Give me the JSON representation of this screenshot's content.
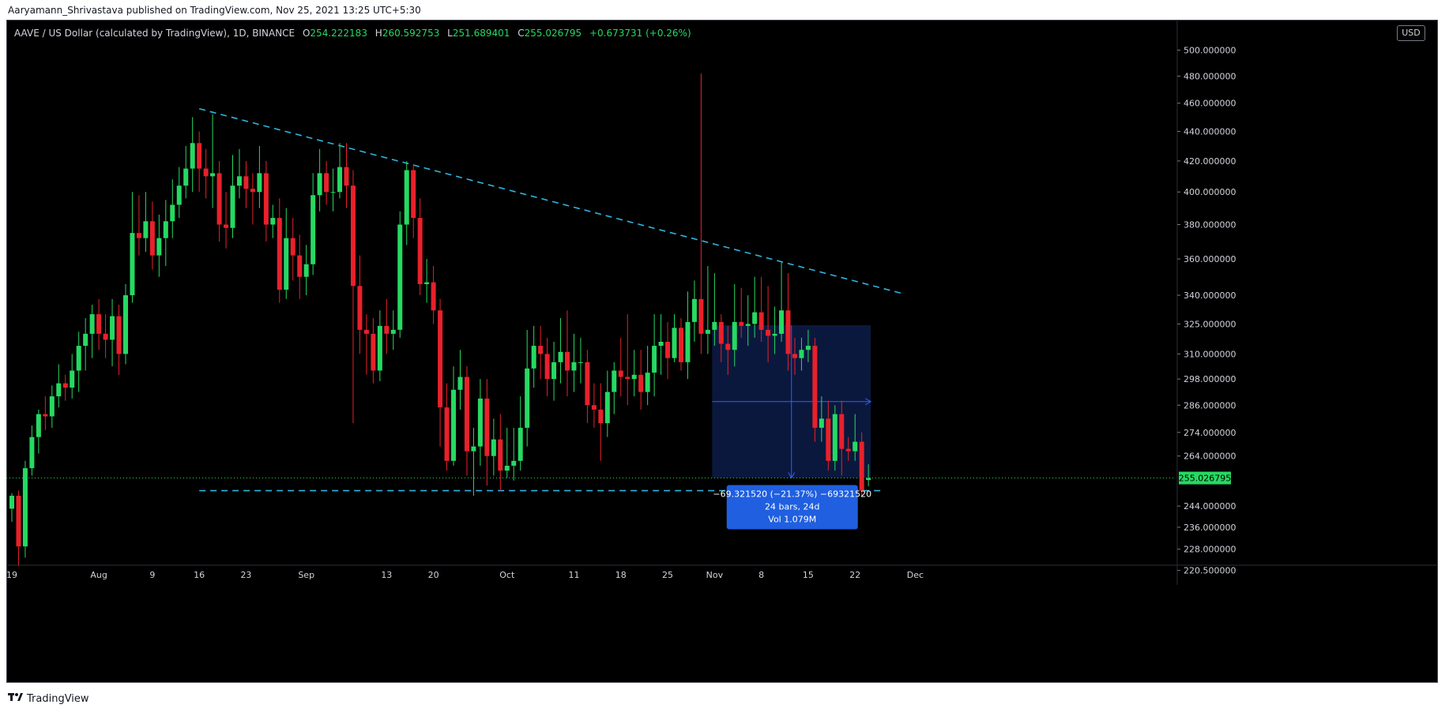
{
  "header": {
    "published": "Aaryamann_Shrivastava published on TradingView.com, Nov 25, 2021 13:25 UTC+5:30"
  },
  "legend": {
    "symbol": "AAVE / US Dollar (calculated by TradingView), 1D, BINANCE",
    "open_label": "O",
    "open": "254.222183",
    "high_label": "H",
    "high": "260.592753",
    "low_label": "L",
    "low": "251.689401",
    "close_label": "C",
    "close": "255.026795",
    "change": "+0.673731 (+0.26%)"
  },
  "currency_button": "USD",
  "footer": {
    "logo_icon": "tradingview-logo-icon",
    "brand": "TradingView"
  },
  "colors": {
    "up": "#26d962",
    "down": "#e8212b",
    "trendline": "#2fb5e0",
    "measure_fill": "#0c1b44",
    "measure_line": "#2962ff",
    "measure_label": "#1f5fe0",
    "last_price": "#26d962",
    "background": "#000000"
  },
  "measure": {
    "line1": "−69.321520 (−21.37%) −69321520",
    "line2": "24 bars, 24d",
    "line3": "Vol 1.079M",
    "from_date": "2021-11-01",
    "to_date": "2021-11-24",
    "from_price": 324.35,
    "to_price": 255.03
  },
  "chart_data": {
    "type": "candlestick",
    "symbol": "AAVE/USD",
    "interval": "1D",
    "y_scale": "log",
    "ylim": [
      215,
      520
    ],
    "last_price": 255.026795,
    "last_price_label": "255.026795",
    "y_ticks": [
      "500.000000",
      "480.000000",
      "460.000000",
      "440.000000",
      "420.000000",
      "400.000000",
      "380.000000",
      "360.000000",
      "340.000000",
      "325.000000",
      "310.000000",
      "298.000000",
      "286.000000",
      "274.000000",
      "264.000000",
      "255.026795",
      "244.000000",
      "236.000000",
      "228.000000",
      "220.500000"
    ],
    "x_ticks": [
      {
        "label": "19",
        "date": "2021-07-19"
      },
      {
        "label": "Aug",
        "date": "2021-08-01"
      },
      {
        "label": "9",
        "date": "2021-08-09"
      },
      {
        "label": "16",
        "date": "2021-08-16"
      },
      {
        "label": "23",
        "date": "2021-08-23"
      },
      {
        "label": "Sep",
        "date": "2021-09-01"
      },
      {
        "label": "13",
        "date": "2021-09-13"
      },
      {
        "label": "20",
        "date": "2021-09-20"
      },
      {
        "label": "Oct",
        "date": "2021-10-01"
      },
      {
        "label": "11",
        "date": "2021-10-11"
      },
      {
        "label": "18",
        "date": "2021-10-18"
      },
      {
        "label": "25",
        "date": "2021-10-25"
      },
      {
        "label": "Nov",
        "date": "2021-11-01"
      },
      {
        "label": "8",
        "date": "2021-11-08"
      },
      {
        "label": "15",
        "date": "2021-11-15"
      },
      {
        "label": "22",
        "date": "2021-11-22"
      },
      {
        "label": "Dec",
        "date": "2021-12-01"
      }
    ],
    "trendlines": [
      {
        "name": "descending resistance",
        "from": {
          "date": "2021-08-16",
          "price": 456
        },
        "to": {
          "date": "2021-11-29",
          "price": 341
        }
      },
      {
        "name": "horizontal support",
        "from": {
          "date": "2021-08-16",
          "price": 250
        },
        "to": {
          "date": "2021-11-26",
          "price": 250
        }
      }
    ],
    "start_date": "2021-07-19",
    "candles": [
      [
        243,
        248,
        238,
        249
      ],
      [
        248,
        229,
        222,
        250
      ],
      [
        229,
        259,
        225,
        262
      ],
      [
        259,
        272,
        256,
        277
      ],
      [
        272,
        282,
        265,
        284
      ],
      [
        282,
        281,
        275,
        290
      ],
      [
        281,
        290,
        276,
        295
      ],
      [
        290,
        296,
        285,
        305
      ],
      [
        296,
        294,
        288,
        300
      ],
      [
        294,
        302,
        289,
        310
      ],
      [
        302,
        314,
        292,
        321
      ],
      [
        314,
        320,
        302,
        328
      ],
      [
        320,
        330,
        308,
        335
      ],
      [
        330,
        320,
        312,
        338
      ],
      [
        320,
        317,
        308,
        330
      ],
      [
        317,
        329,
        304,
        338
      ],
      [
        329,
        310,
        300,
        335
      ],
      [
        310,
        340,
        305,
        346
      ],
      [
        340,
        375,
        336,
        400
      ],
      [
        375,
        372,
        362,
        398
      ],
      [
        372,
        382,
        364,
        400
      ],
      [
        382,
        362,
        354,
        394
      ],
      [
        362,
        372,
        350,
        386
      ],
      [
        372,
        382,
        356,
        395
      ],
      [
        382,
        392,
        372,
        408
      ],
      [
        392,
        404,
        384,
        416
      ],
      [
        404,
        415,
        396,
        430
      ],
      [
        415,
        432,
        400,
        450
      ],
      [
        432,
        415,
        400,
        440
      ],
      [
        415,
        410,
        396,
        428
      ],
      [
        410,
        412,
        390,
        452
      ],
      [
        412,
        380,
        370,
        420
      ],
      [
        380,
        378,
        366,
        400
      ],
      [
        378,
        404,
        372,
        424
      ],
      [
        404,
        410,
        396,
        428
      ],
      [
        410,
        402,
        390,
        420
      ],
      [
        402,
        400,
        380,
        412
      ],
      [
        400,
        412,
        390,
        430
      ],
      [
        412,
        380,
        370,
        420
      ],
      [
        380,
        384,
        372,
        392
      ],
      [
        384,
        343,
        336,
        396
      ],
      [
        343,
        372,
        338,
        390
      ],
      [
        372,
        362,
        348,
        384
      ],
      [
        362,
        350,
        338,
        374
      ],
      [
        350,
        357,
        340,
        368
      ],
      [
        357,
        398,
        351,
        412
      ],
      [
        398,
        412,
        388,
        428
      ],
      [
        412,
        400,
        392,
        420
      ],
      [
        400,
        400,
        388,
        415
      ],
      [
        400,
        416,
        396,
        432
      ],
      [
        416,
        404,
        390,
        432
      ],
      [
        404,
        345,
        278,
        414
      ],
      [
        345,
        322,
        310,
        362
      ],
      [
        322,
        320,
        300,
        330
      ],
      [
        320,
        302,
        296,
        328
      ],
      [
        302,
        324,
        297,
        332
      ],
      [
        324,
        320,
        310,
        338
      ],
      [
        320,
        322,
        312,
        332
      ],
      [
        322,
        380,
        318,
        388
      ],
      [
        380,
        414,
        368,
        420
      ],
      [
        414,
        384,
        372,
        418
      ],
      [
        384,
        346,
        340,
        396
      ],
      [
        346,
        347,
        336,
        360
      ],
      [
        347,
        332,
        325,
        356
      ],
      [
        332,
        285,
        268,
        338
      ],
      [
        285,
        262,
        258,
        296
      ],
      [
        262,
        293,
        260,
        304
      ],
      [
        293,
        299,
        284,
        312
      ],
      [
        299,
        266,
        256,
        304
      ],
      [
        266,
        268,
        248,
        276
      ],
      [
        268,
        289,
        260,
        298
      ],
      [
        289,
        264,
        252,
        298
      ],
      [
        264,
        271,
        256,
        280
      ],
      [
        271,
        258,
        250,
        282
      ],
      [
        258,
        260,
        255,
        276
      ],
      [
        260,
        262,
        254,
        276
      ],
      [
        262,
        276,
        258,
        290
      ],
      [
        276,
        303,
        268,
        322
      ],
      [
        303,
        314,
        294,
        324
      ],
      [
        314,
        310,
        298,
        324
      ],
      [
        310,
        298,
        290,
        318
      ],
      [
        298,
        306,
        288,
        316
      ],
      [
        306,
        311,
        296,
        328
      ],
      [
        311,
        302,
        290,
        332
      ],
      [
        302,
        306,
        292,
        320
      ],
      [
        306,
        306,
        296,
        318
      ],
      [
        306,
        286,
        278,
        312
      ],
      [
        286,
        284,
        276,
        296
      ],
      [
        284,
        278,
        262,
        296
      ],
      [
        278,
        292,
        272,
        302
      ],
      [
        292,
        302,
        282,
        306
      ],
      [
        302,
        299,
        290,
        318
      ],
      [
        299,
        298,
        286,
        330
      ],
      [
        298,
        300,
        290,
        312
      ],
      [
        300,
        292,
        284,
        312
      ],
      [
        292,
        301,
        286,
        314
      ],
      [
        301,
        314,
        290,
        330
      ],
      [
        314,
        316,
        300,
        330
      ],
      [
        316,
        308,
        298,
        326
      ],
      [
        308,
        323,
        306,
        330
      ],
      [
        323,
        306,
        302,
        328
      ],
      [
        306,
        326,
        298,
        342
      ],
      [
        326,
        338,
        316,
        348
      ],
      [
        338,
        320,
        310,
        482
      ],
      [
        320,
        322,
        310,
        356
      ],
      [
        322,
        326,
        314,
        352
      ],
      [
        326,
        315,
        306,
        330
      ],
      [
        315,
        312,
        300,
        324
      ],
      [
        312,
        326,
        304,
        346
      ],
      [
        326,
        324,
        318,
        344
      ],
      [
        324,
        325,
        314,
        340
      ],
      [
        325,
        331,
        318,
        350
      ],
      [
        331,
        322,
        316,
        350
      ],
      [
        322,
        319,
        306,
        345
      ],
      [
        319,
        320,
        310,
        334
      ],
      [
        320,
        332,
        316,
        358
      ],
      [
        332,
        310,
        302,
        352
      ],
      [
        310,
        308,
        300,
        318
      ],
      [
        308,
        312,
        302,
        318
      ],
      [
        312,
        314,
        306,
        322
      ],
      [
        314,
        276,
        270,
        318
      ],
      [
        276,
        280,
        270,
        290
      ],
      [
        280,
        262,
        258,
        288
      ],
      [
        262,
        282,
        258,
        286
      ],
      [
        282,
        267,
        256,
        288
      ],
      [
        267,
        266,
        262,
        272
      ],
      [
        266,
        270,
        262,
        282
      ],
      [
        270,
        250,
        248,
        274
      ],
      [
        254.222183,
        255.026795,
        251.689401,
        260.592753
      ]
    ]
  }
}
